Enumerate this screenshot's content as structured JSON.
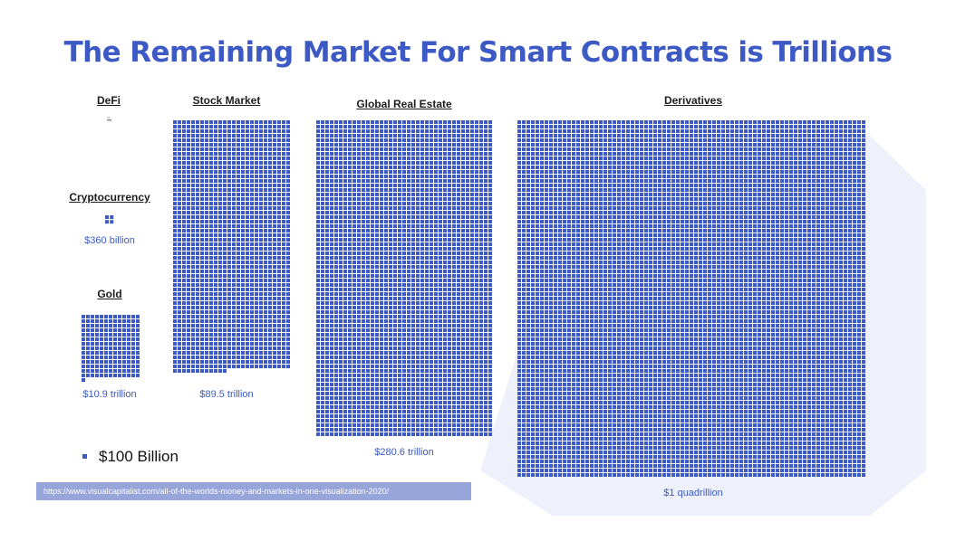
{
  "title": "The Remaining Market For Smart Contracts is Trillions",
  "colors": {
    "accent": "#3d59c4",
    "source_bg": "#97a5da",
    "hex_bg": "#eef1fb"
  },
  "chart_data": {
    "type": "waffle",
    "unit_value": "$100 Billion",
    "categories": [
      {
        "label": "DeFi",
        "value_label": "-",
        "value_billions": 0
      },
      {
        "label": "Cryptocurrency",
        "value_label": "$360 billion",
        "value_billions": 360
      },
      {
        "label": "Gold",
        "value_label": "$10.9 trillion",
        "value_billions": 10900
      },
      {
        "label": "Stock Market",
        "value_label": "$89.5 trillion",
        "value_billions": 89500
      },
      {
        "label": "Global Real Estate",
        "value_label": "$280.6 trillion",
        "value_billions": 280600
      },
      {
        "label": "Derivatives",
        "value_label": "$1 quadrillion",
        "value_billions": 1000000
      }
    ]
  },
  "legend": {
    "label": "$100 Billion"
  },
  "source": {
    "text": "https://www.visualcapitalist.com/all-of-the-worlds-money-and-markets-in-one-visualization-2020/"
  }
}
